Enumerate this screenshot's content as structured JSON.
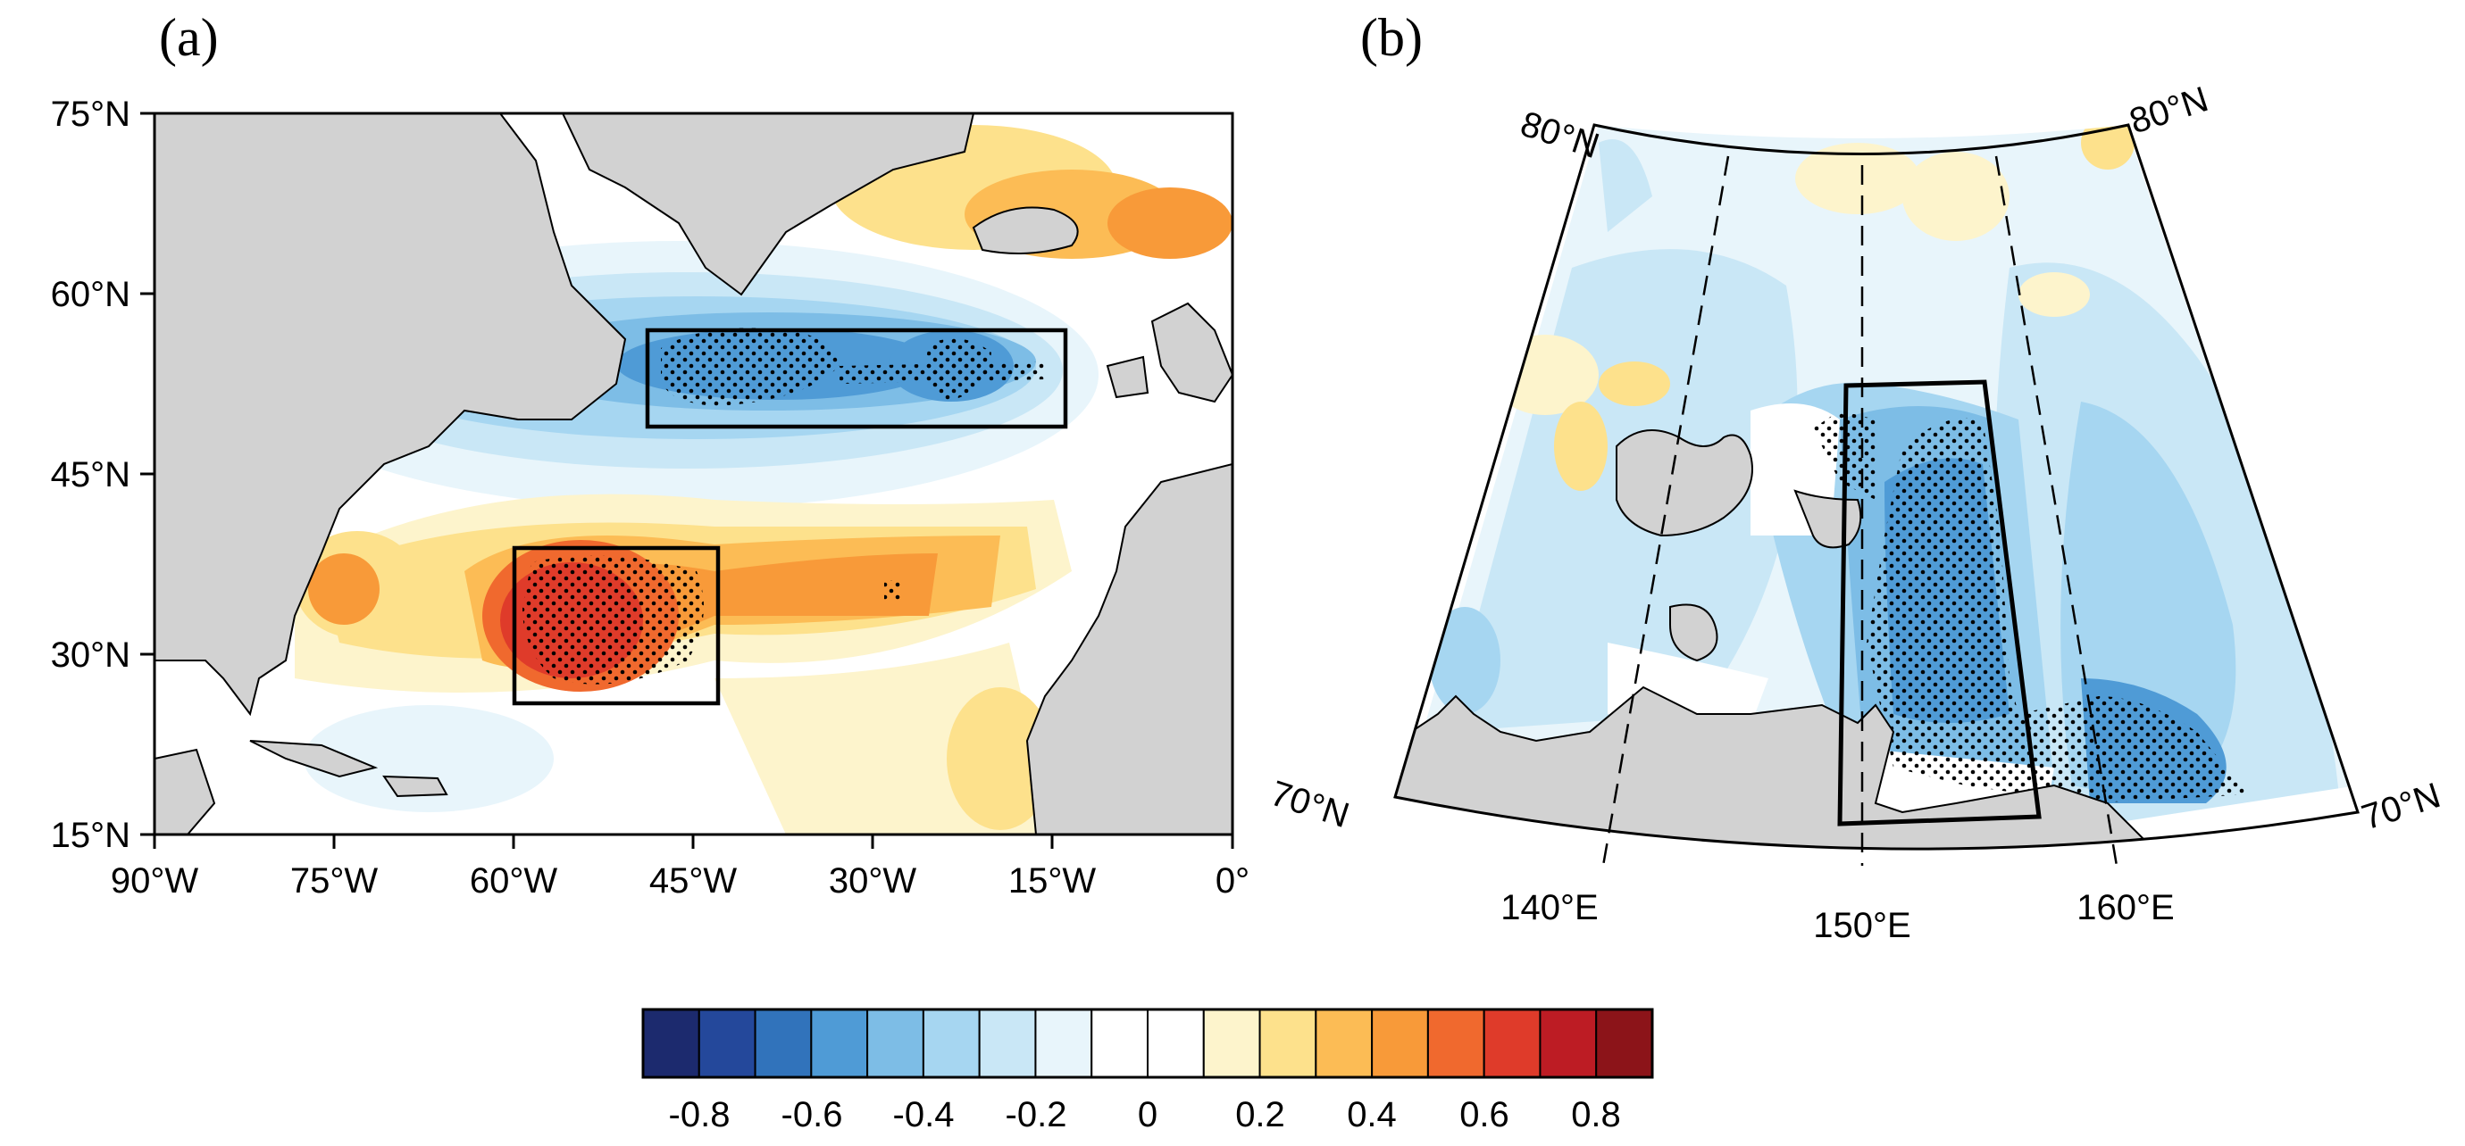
{
  "panel_a": {
    "label": "(a)",
    "lat_ticks": [
      "75°N",
      "60°N",
      "45°N",
      "30°N",
      "15°N"
    ],
    "lon_ticks": [
      "90°W",
      "75°W",
      "60°W",
      "45°W",
      "30°W",
      "15°W",
      "0°"
    ],
    "lon_range": [
      -90,
      0
    ],
    "lat_range": [
      15,
      75
    ],
    "boxes": [
      {
        "name": "north-box",
        "lon": [
          -50,
          -13
        ],
        "lat": [
          49,
          57
        ],
        "sign": "negative"
      },
      {
        "name": "south-box",
        "lon": [
          -60,
          -43
        ],
        "lat": [
          26,
          39
        ],
        "sign": "positive"
      }
    ]
  },
  "panel_b": {
    "label": "(b)",
    "lat_labels": [
      "80°N",
      "80°N",
      "70°N",
      "70°N"
    ],
    "lon_labels": [
      "140°E",
      "150°E",
      "160°E"
    ],
    "lon_range": [
      130,
      170
    ],
    "lat_range": [
      70,
      80
    ]
  },
  "colorbar": {
    "tick_labels": [
      "-0.8",
      "-0.6",
      "-0.4",
      "-0.2",
      "0",
      "0.2",
      "0.4",
      "0.6",
      "0.8"
    ],
    "colors": [
      "#1c2a6e",
      "#24489b",
      "#3173bb",
      "#4f9bd6",
      "#7dbde6",
      "#a6d6f1",
      "#c9e7f6",
      "#e8f5fb",
      "#ffffff",
      "#ffffff",
      "#fdf4cc",
      "#fde18c",
      "#fcbc55",
      "#f89a39",
      "#f0692e",
      "#df3b2a",
      "#bd1c24",
      "#8c1419"
    ]
  },
  "colors": {
    "land": "#d2d2d2",
    "coast": "#000000"
  }
}
